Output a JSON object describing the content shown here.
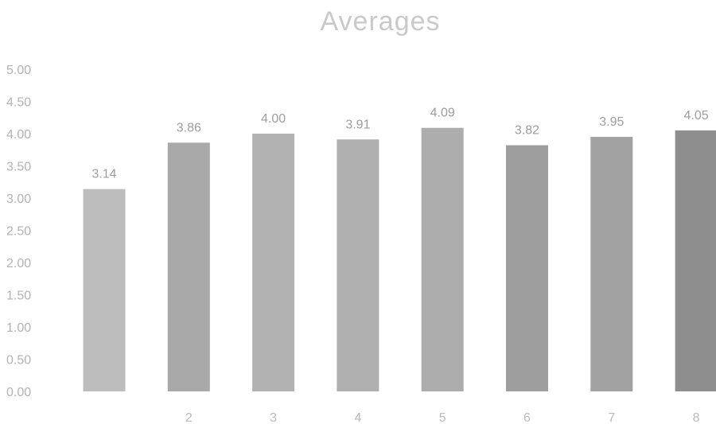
{
  "chart_data": {
    "type": "bar",
    "title": "Averages",
    "xlabel": "",
    "ylabel": "",
    "ylim": [
      0,
      5
    ],
    "yticks": [
      "0.00",
      "0.50",
      "1.00",
      "1.50",
      "2.00",
      "2.50",
      "3.00",
      "3.50",
      "4.00",
      "4.50",
      "5.00"
    ],
    "categories": [
      "",
      "2",
      "3",
      "4",
      "5",
      "6",
      "7",
      "8"
    ],
    "values": [
      3.14,
      3.86,
      4.0,
      3.91,
      4.09,
      3.82,
      3.95,
      4.05
    ],
    "data_labels": [
      "3.14",
      "3.86",
      "4.00",
      "3.91",
      "4.09",
      "3.82",
      "3.95",
      "4.05"
    ],
    "grid": false,
    "legend": "none",
    "colors": [
      "#bdbdbd",
      "#a9a9a9",
      "#b2b2b2",
      "#b0b0b0",
      "#adadad",
      "#9e9e9e",
      "#a2a2a2",
      "#8e8e8e"
    ]
  }
}
